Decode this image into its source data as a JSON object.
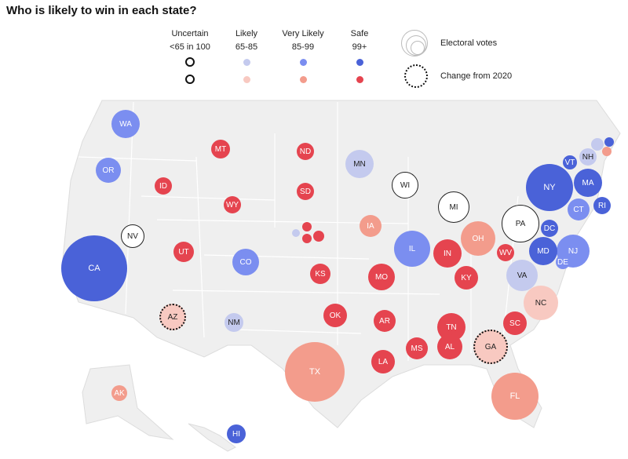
{
  "title": "Who is likely to win in each state?",
  "legend": {
    "categories": [
      {
        "label": "Uncertain",
        "range": "<65 in 100"
      },
      {
        "label": "Likely",
        "range": "65-85"
      },
      {
        "label": "Very Likely",
        "range": "85-99"
      },
      {
        "label": "Safe",
        "range": "99+"
      }
    ],
    "size_label": "Electoral votes",
    "change_label": "Change from 2020"
  },
  "colors": {
    "blue": {
      "uncertain": "#ffffff",
      "likely": "#c4caee",
      "very_likely": "#7b8ef0",
      "safe": "#4a62d8"
    },
    "red": {
      "uncertain": "#ffffff",
      "likely": "#f8c9c1",
      "very_likely": "#f39c8c",
      "safe": "#e5444f"
    },
    "map_fill": "#efefef",
    "map_border": "#ffffff"
  },
  "states": [
    {
      "abbr": "WA",
      "party": "blue",
      "rating": "very_likely"
    },
    {
      "abbr": "OR",
      "party": "blue",
      "rating": "very_likely"
    },
    {
      "abbr": "CA",
      "party": "blue",
      "rating": "safe"
    },
    {
      "abbr": "NV",
      "party": "blue",
      "rating": "uncertain"
    },
    {
      "abbr": "ID",
      "party": "red",
      "rating": "safe"
    },
    {
      "abbr": "MT",
      "party": "red",
      "rating": "safe"
    },
    {
      "abbr": "WY",
      "party": "red",
      "rating": "safe"
    },
    {
      "abbr": "UT",
      "party": "red",
      "rating": "safe"
    },
    {
      "abbr": "CO",
      "party": "blue",
      "rating": "very_likely"
    },
    {
      "abbr": "AZ",
      "party": "red",
      "rating": "likely",
      "changed": true
    },
    {
      "abbr": "NM",
      "party": "blue",
      "rating": "likely"
    },
    {
      "abbr": "ND",
      "party": "red",
      "rating": "safe"
    },
    {
      "abbr": "SD",
      "party": "red",
      "rating": "safe"
    },
    {
      "abbr": "",
      "id": "NE-2",
      "party": "blue",
      "rating": "likely"
    },
    {
      "abbr": "",
      "id": "NE-a",
      "party": "red",
      "rating": "safe"
    },
    {
      "abbr": "",
      "id": "NE-b",
      "party": "red",
      "rating": "safe"
    },
    {
      "abbr": "",
      "id": "NE-c",
      "party": "red",
      "rating": "safe"
    },
    {
      "abbr": "KS",
      "party": "red",
      "rating": "safe"
    },
    {
      "abbr": "OK",
      "party": "red",
      "rating": "safe"
    },
    {
      "abbr": "TX",
      "party": "red",
      "rating": "very_likely"
    },
    {
      "abbr": "MN",
      "party": "blue",
      "rating": "likely"
    },
    {
      "abbr": "IA",
      "party": "red",
      "rating": "very_likely"
    },
    {
      "abbr": "MO",
      "party": "red",
      "rating": "safe"
    },
    {
      "abbr": "AR",
      "party": "red",
      "rating": "safe"
    },
    {
      "abbr": "LA",
      "party": "red",
      "rating": "safe"
    },
    {
      "abbr": "WI",
      "party": "blue",
      "rating": "uncertain"
    },
    {
      "abbr": "IL",
      "party": "blue",
      "rating": "very_likely"
    },
    {
      "abbr": "MI",
      "party": "blue",
      "rating": "uncertain"
    },
    {
      "abbr": "IN",
      "party": "red",
      "rating": "safe"
    },
    {
      "abbr": "KY",
      "party": "red",
      "rating": "safe"
    },
    {
      "abbr": "TN",
      "party": "red",
      "rating": "safe"
    },
    {
      "abbr": "MS",
      "party": "red",
      "rating": "safe"
    },
    {
      "abbr": "AL",
      "party": "red",
      "rating": "safe"
    },
    {
      "abbr": "OH",
      "party": "red",
      "rating": "very_likely"
    },
    {
      "abbr": "WV",
      "party": "red",
      "rating": "safe"
    },
    {
      "abbr": "PA",
      "party": "blue",
      "rating": "uncertain"
    },
    {
      "abbr": "VA",
      "party": "blue",
      "rating": "likely"
    },
    {
      "abbr": "NC",
      "party": "red",
      "rating": "likely"
    },
    {
      "abbr": "SC",
      "party": "red",
      "rating": "safe"
    },
    {
      "abbr": "GA",
      "party": "red",
      "rating": "likely",
      "changed": true
    },
    {
      "abbr": "FL",
      "party": "red",
      "rating": "very_likely"
    },
    {
      "abbr": "NY",
      "party": "blue",
      "rating": "safe"
    },
    {
      "abbr": "VT",
      "party": "blue",
      "rating": "safe"
    },
    {
      "abbr": "NH",
      "party": "blue",
      "rating": "likely"
    },
    {
      "abbr": "",
      "id": "ME-a",
      "party": "blue",
      "rating": "likely"
    },
    {
      "abbr": "",
      "id": "ME-1",
      "party": "blue",
      "rating": "safe"
    },
    {
      "abbr": "",
      "id": "ME-2",
      "party": "red",
      "rating": "very_likely"
    },
    {
      "abbr": "MA",
      "party": "blue",
      "rating": "safe"
    },
    {
      "abbr": "RI",
      "party": "blue",
      "rating": "safe"
    },
    {
      "abbr": "CT",
      "party": "blue",
      "rating": "very_likely"
    },
    {
      "abbr": "DC",
      "party": "blue",
      "rating": "safe"
    },
    {
      "abbr": "NJ",
      "party": "blue",
      "rating": "very_likely"
    },
    {
      "abbr": "MD",
      "party": "blue",
      "rating": "safe"
    },
    {
      "abbr": "DE",
      "party": "blue",
      "rating": "very_likely"
    },
    {
      "abbr": "HI",
      "party": "blue",
      "rating": "safe"
    },
    {
      "abbr": "AK",
      "party": "red",
      "rating": "very_likely"
    }
  ]
}
